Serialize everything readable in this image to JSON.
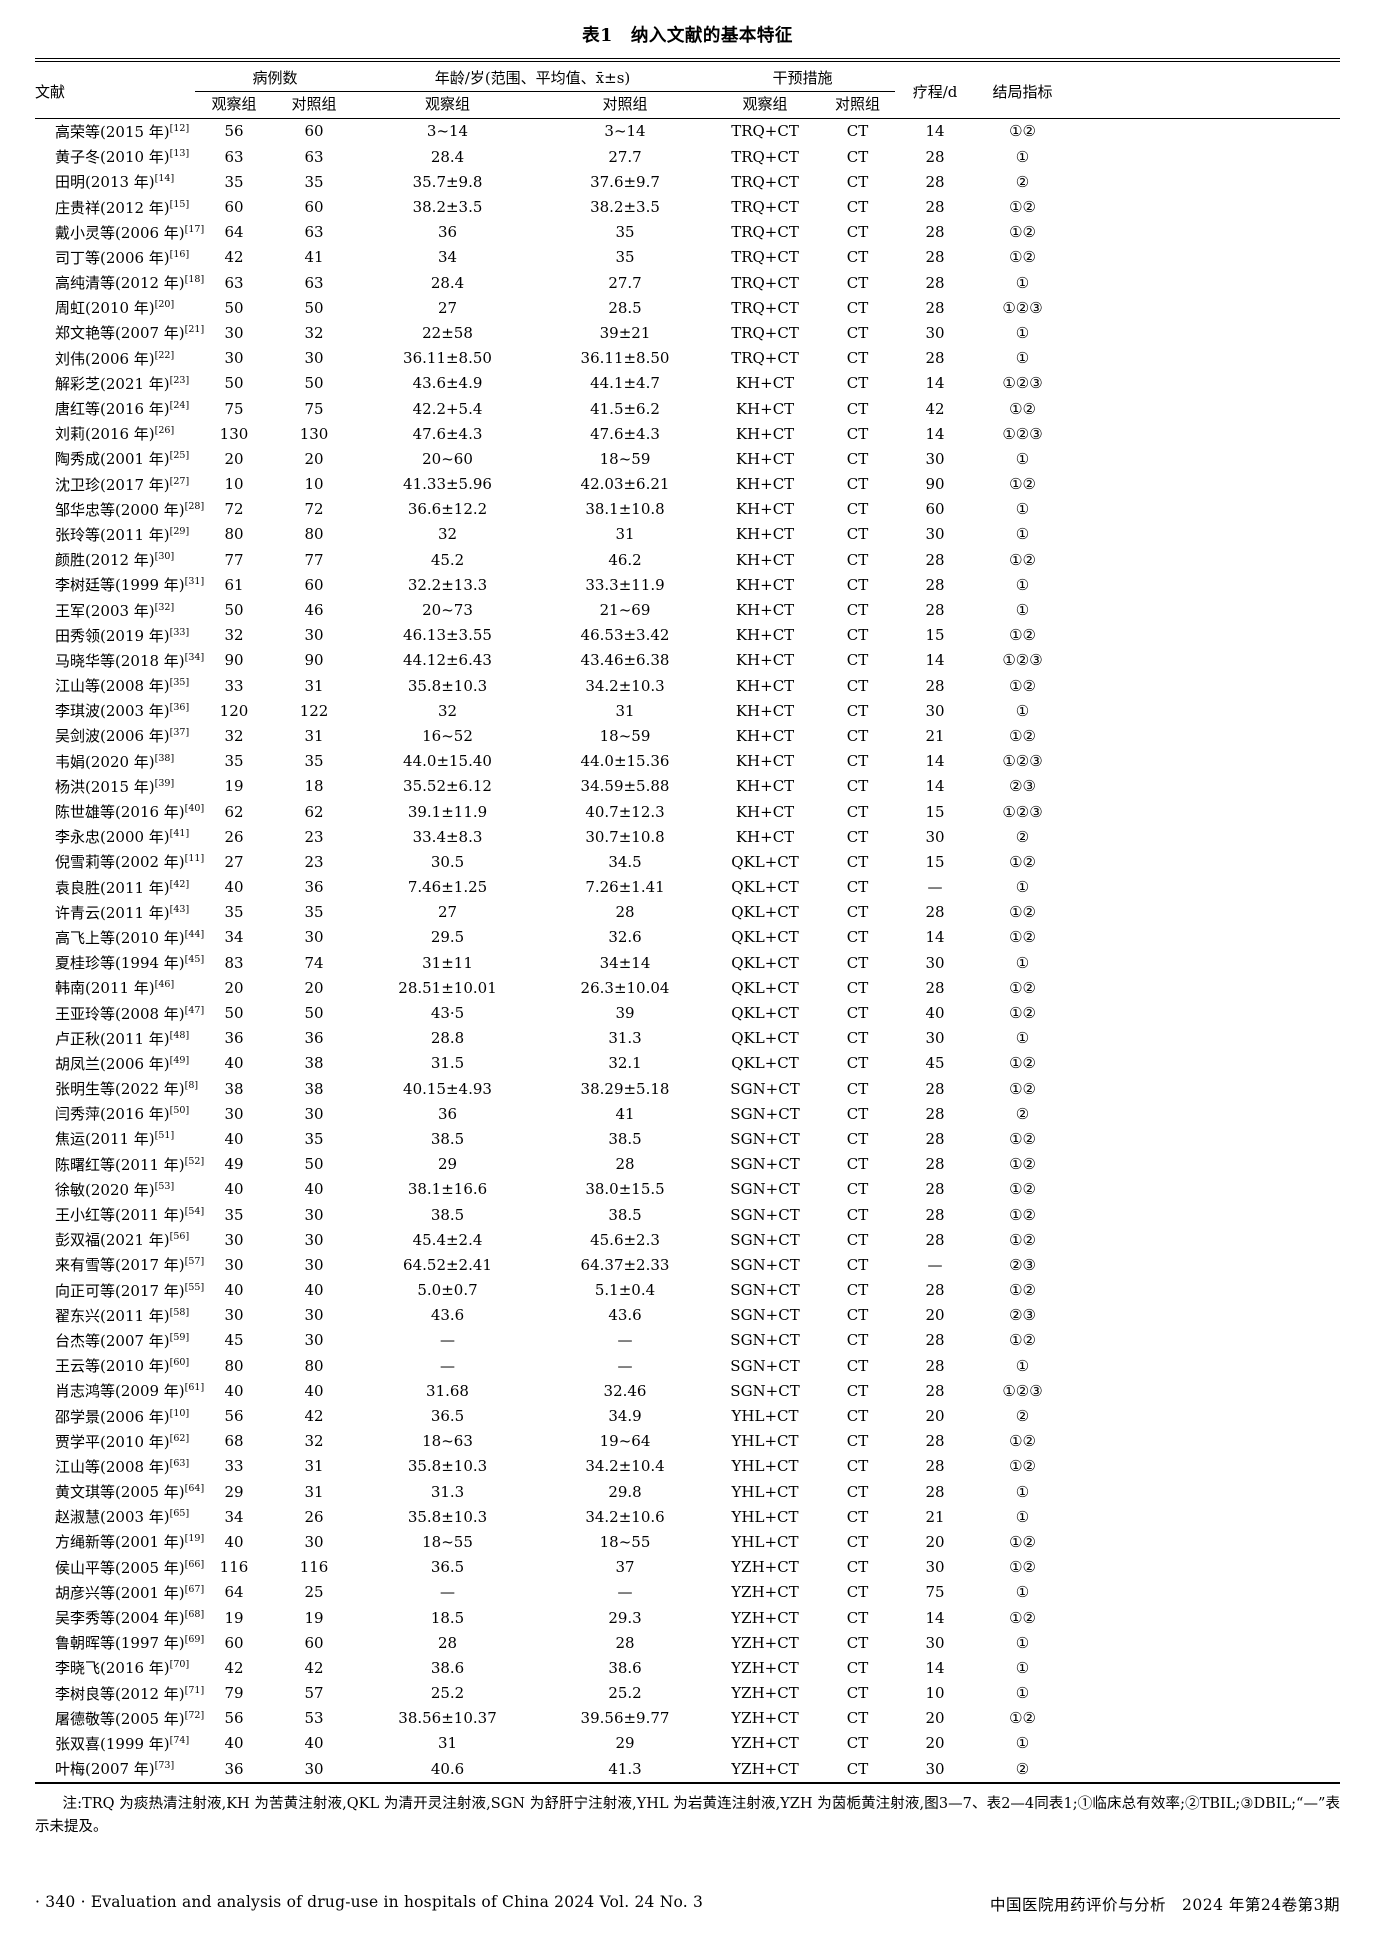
{
  "page": {
    "title": "表1　纳入文献的基本特征",
    "note": "注:TRQ 为痰热清注射液,KH 为苦黄注射液,QKL 为清开灵注射液,SGN 为舒肝宁注射液,YHL 为岩黄连注射液,YZH 为茵栀黄注射液,图3—7、表2—4同表1;①临床总有效率;②TBIL;③DBIL;“—”表示未提及。",
    "footer_left": "· 340 ·  Evaluation and analysis of drug-use in hospitals of China 2024 Vol. 24 No. 3",
    "footer_right": "中国医院用药评价与分析　2024 年第24卷第3期"
  },
  "table": {
    "headers": {
      "literature": "文献",
      "cases": "病例数",
      "age": "年龄/岁(范围、平均值、x̄±s)",
      "intervention": "干预措施",
      "course": "疗程/d",
      "outcome": "结局指标",
      "obs": "观察组",
      "ctl": "对照组",
      "obs2": "观察组",
      "ctl2": "对照组",
      "obs3": "观察组",
      "ctl3": "对照组"
    },
    "rows": [
      [
        "高荣等(2015 年)",
        "[12]",
        "56",
        "60",
        "3~14",
        "3~14",
        "TRQ+CT",
        "CT",
        "14",
        "①②"
      ],
      [
        "黄子冬(2010 年)",
        "[13]",
        "63",
        "63",
        "28.4",
        "27.7",
        "TRQ+CT",
        "CT",
        "28",
        "①"
      ],
      [
        "田明(2013 年)",
        "[14]",
        "35",
        "35",
        "35.7±9.8",
        "37.6±9.7",
        "TRQ+CT",
        "CT",
        "28",
        "②"
      ],
      [
        "庄贵祥(2012 年)",
        "[15]",
        "60",
        "60",
        "38.2±3.5",
        "38.2±3.5",
        "TRQ+CT",
        "CT",
        "28",
        "①②"
      ],
      [
        "戴小灵等(2006 年)",
        "[17]",
        "64",
        "63",
        "36",
        "35",
        "TRQ+CT",
        "CT",
        "28",
        "①②"
      ],
      [
        "司丁等(2006 年)",
        "[16]",
        "42",
        "41",
        "34",
        "35",
        "TRQ+CT",
        "CT",
        "28",
        "①②"
      ],
      [
        "高纯清等(2012 年)",
        "[18]",
        "63",
        "63",
        "28.4",
        "27.7",
        "TRQ+CT",
        "CT",
        "28",
        "①"
      ],
      [
        "周虹(2010 年)",
        "[20]",
        "50",
        "50",
        "27",
        "28.5",
        "TRQ+CT",
        "CT",
        "28",
        "①②③"
      ],
      [
        "郑文艳等(2007 年)",
        "[21]",
        "30",
        "32",
        "22±58",
        "39±21",
        "TRQ+CT",
        "CT",
        "30",
        "①"
      ],
      [
        "刘伟(2006 年)",
        "[22]",
        "30",
        "30",
        "36.11±8.50",
        "36.11±8.50",
        "TRQ+CT",
        "CT",
        "28",
        "①"
      ],
      [
        "解彩芝(2021 年)",
        "[23]",
        "50",
        "50",
        "43.6±4.9",
        "44.1±4.7",
        "KH+CT",
        "CT",
        "14",
        "①②③"
      ],
      [
        "唐红等(2016 年)",
        "[24]",
        "75",
        "75",
        "42.2+5.4",
        "41.5±6.2",
        "KH+CT",
        "CT",
        "42",
        "①②"
      ],
      [
        "刘莉(2016 年)",
        "[26]",
        "130",
        "130",
        "47.6±4.3",
        "47.6±4.3",
        "KH+CT",
        "CT",
        "14",
        "①②③"
      ],
      [
        "陶秀成(2001 年)",
        "[25]",
        "20",
        "20",
        "20~60",
        "18~59",
        "KH+CT",
        "CT",
        "30",
        "①"
      ],
      [
        "沈卫珍(2017 年)",
        "[27]",
        "10",
        "10",
        "41.33±5.96",
        "42.03±6.21",
        "KH+CT",
        "CT",
        "90",
        "①②"
      ],
      [
        "邹华忠等(2000 年)",
        "[28]",
        "72",
        "72",
        "36.6±12.2",
        "38.1±10.8",
        "KH+CT",
        "CT",
        "60",
        "①"
      ],
      [
        "张玲等(2011 年)",
        "[29]",
        "80",
        "80",
        "32",
        "31",
        "KH+CT",
        "CT",
        "30",
        "①"
      ],
      [
        "颜胜(2012 年)",
        "[30]",
        "77",
        "77",
        "45.2",
        "46.2",
        "KH+CT",
        "CT",
        "28",
        "①②"
      ],
      [
        "李树廷等(1999 年)",
        "[31]",
        "61",
        "60",
        "32.2±13.3",
        "33.3±11.9",
        "KH+CT",
        "CT",
        "28",
        "①"
      ],
      [
        "王军(2003 年)",
        "[32]",
        "50",
        "46",
        "20~73",
        "21~69",
        "KH+CT",
        "CT",
        "28",
        "①"
      ],
      [
        "田秀领(2019 年)",
        "[33]",
        "32",
        "30",
        "46.13±3.55",
        "46.53±3.42",
        "KH+CT",
        "CT",
        "15",
        "①②"
      ],
      [
        "马晓华等(2018 年)",
        "[34]",
        "90",
        "90",
        "44.12±6.43",
        "43.46±6.38",
        "KH+CT",
        "CT",
        "14",
        "①②③"
      ],
      [
        "江山等(2008 年)",
        "[35]",
        "33",
        "31",
        "35.8±10.3",
        "34.2±10.3",
        "KH+CT",
        "CT",
        "28",
        "①②"
      ],
      [
        "李琪波(2003 年)",
        "[36]",
        "120",
        "122",
        "32",
        "31",
        "KH+CT",
        "CT",
        "30",
        "①"
      ],
      [
        "吴剑波(2006 年)",
        "[37]",
        "32",
        "31",
        "16~52",
        "18~59",
        "KH+CT",
        "CT",
        "21",
        "①②"
      ],
      [
        "韦娟(2020 年)",
        "[38]",
        "35",
        "35",
        "44.0±15.40",
        "44.0±15.36",
        "KH+CT",
        "CT",
        "14",
        "①②③"
      ],
      [
        "杨洪(2015 年)",
        "[39]",
        "19",
        "18",
        "35.52±6.12",
        "34.59±5.88",
        "KH+CT",
        "CT",
        "14",
        "②③"
      ],
      [
        "陈世雄等(2016 年)",
        "[40]",
        "62",
        "62",
        "39.1±11.9",
        "40.7±12.3",
        "KH+CT",
        "CT",
        "15",
        "①②③"
      ],
      [
        "李永忠(2000 年)",
        "[41]",
        "26",
        "23",
        "33.4±8.3",
        "30.7±10.8",
        "KH+CT",
        "CT",
        "30",
        "②"
      ],
      [
        "倪雪莉等(2002 年)",
        "[11]",
        "27",
        "23",
        "30.5",
        "34.5",
        "QKL+CT",
        "CT",
        "15",
        "①②"
      ],
      [
        "袁良胜(2011 年)",
        "[42]",
        "40",
        "36",
        "7.46±1.25",
        "7.26±1.41",
        "QKL+CT",
        "CT",
        "—",
        "①"
      ],
      [
        "许青云(2011 年)",
        "[43]",
        "35",
        "35",
        "27",
        "28",
        "QKL+CT",
        "CT",
        "28",
        "①②"
      ],
      [
        "高飞上等(2010 年)",
        "[44]",
        "34",
        "30",
        "29.5",
        "32.6",
        "QKL+CT",
        "CT",
        "14",
        "①②"
      ],
      [
        "夏桂珍等(1994 年)",
        "[45]",
        "83",
        "74",
        "31±11",
        "34±14",
        "QKL+CT",
        "CT",
        "30",
        "①"
      ],
      [
        "韩南(2011 年)",
        "[46]",
        "20",
        "20",
        "28.51±10.01",
        "26.3±10.04",
        "QKL+CT",
        "CT",
        "28",
        "①②"
      ],
      [
        "王亚玲等(2008 年)",
        "[47]",
        "50",
        "50",
        "43·5",
        "39",
        "QKL+CT",
        "CT",
        "40",
        "①②"
      ],
      [
        "卢正秋(2011 年)",
        "[48]",
        "36",
        "36",
        "28.8",
        "31.3",
        "QKL+CT",
        "CT",
        "30",
        "①"
      ],
      [
        "胡凤兰(2006 年)",
        "[49]",
        "40",
        "38",
        "31.5",
        "32.1",
        "QKL+CT",
        "CT",
        "45",
        "①②"
      ],
      [
        "张明生等(2022 年)",
        "[8]",
        "38",
        "38",
        "40.15±4.93",
        "38.29±5.18",
        "SGN+CT",
        "CT",
        "28",
        "①②"
      ],
      [
        "闫秀萍(2016 年)",
        "[50]",
        "30",
        "30",
        "36",
        "41",
        "SGN+CT",
        "CT",
        "28",
        "②"
      ],
      [
        "焦运(2011 年)",
        "[51]",
        "40",
        "35",
        "38.5",
        "38.5",
        "SGN+CT",
        "CT",
        "28",
        "①②"
      ],
      [
        "陈曙红等(2011 年)",
        "[52]",
        "49",
        "50",
        "29",
        "28",
        "SGN+CT",
        "CT",
        "28",
        "①②"
      ],
      [
        "徐敏(2020 年)",
        "[53]",
        "40",
        "40",
        "38.1±16.6",
        "38.0±15.5",
        "SGN+CT",
        "CT",
        "28",
        "①②"
      ],
      [
        "王小红等(2011 年)",
        "[54]",
        "35",
        "30",
        "38.5",
        "38.5",
        "SGN+CT",
        "CT",
        "28",
        "①②"
      ],
      [
        "彭双福(2021 年)",
        "[56]",
        "30",
        "30",
        "45.4±2.4",
        "45.6±2.3",
        "SGN+CT",
        "CT",
        "28",
        "①②"
      ],
      [
        "来有雪等(2017 年)",
        "[57]",
        "30",
        "30",
        "64.52±2.41",
        "64.37±2.33",
        "SGN+CT",
        "CT",
        "—",
        "②③"
      ],
      [
        "向正可等(2017 年)",
        "[55]",
        "40",
        "40",
        "5.0±0.7",
        "5.1±0.4",
        "SGN+CT",
        "CT",
        "28",
        "①②"
      ],
      [
        "翟东兴(2011 年)",
        "[58]",
        "30",
        "30",
        "43.6",
        "43.6",
        "SGN+CT",
        "CT",
        "20",
        "②③"
      ],
      [
        "台杰等(2007 年)",
        "[59]",
        "45",
        "30",
        "—",
        "—",
        "SGN+CT",
        "CT",
        "28",
        "①②"
      ],
      [
        "王云等(2010 年)",
        "[60]",
        "80",
        "80",
        "—",
        "—",
        "SGN+CT",
        "CT",
        "28",
        "①"
      ],
      [
        "肖志鸿等(2009 年)",
        "[61]",
        "40",
        "40",
        "31.68",
        "32.46",
        "SGN+CT",
        "CT",
        "28",
        "①②③"
      ],
      [
        "邵学景(2006 年)",
        "[10]",
        "56",
        "42",
        "36.5",
        "34.9",
        "YHL+CT",
        "CT",
        "20",
        "②"
      ],
      [
        "贾学平(2010 年)",
        "[62]",
        "68",
        "32",
        "18~63",
        "19~64",
        "YHL+CT",
        "CT",
        "28",
        "①②"
      ],
      [
        "江山等(2008 年)",
        "[63]",
        "33",
        "31",
        "35.8±10.3",
        "34.2±10.4",
        "YHL+CT",
        "CT",
        "28",
        "①②"
      ],
      [
        "黄文琪等(2005 年)",
        "[64]",
        "29",
        "31",
        "31.3",
        "29.8",
        "YHL+CT",
        "CT",
        "28",
        "①"
      ],
      [
        "赵淑慧(2003 年)",
        "[65]",
        "34",
        "26",
        "35.8±10.3",
        "34.2±10.6",
        "YHL+CT",
        "CT",
        "21",
        "①"
      ],
      [
        "方绳新等(2001 年)",
        "[19]",
        "40",
        "30",
        "18~55",
        "18~55",
        "YHL+CT",
        "CT",
        "20",
        "①②"
      ],
      [
        "侯山平等(2005 年)",
        "[66]",
        "116",
        "116",
        "36.5",
        "37",
        "YZH+CT",
        "CT",
        "30",
        "①②"
      ],
      [
        "胡彦兴等(2001 年)",
        "[67]",
        "64",
        "25",
        "—",
        "—",
        "YZH+CT",
        "CT",
        "75",
        "①"
      ],
      [
        "吴李秀等(2004 年)",
        "[68]",
        "19",
        "19",
        "18.5",
        "29.3",
        "YZH+CT",
        "CT",
        "14",
        "①②"
      ],
      [
        "鲁朝晖等(1997 年)",
        "[69]",
        "60",
        "60",
        "28",
        "28",
        "YZH+CT",
        "CT",
        "30",
        "①"
      ],
      [
        "李晓飞(2016 年)",
        "[70]",
        "42",
        "42",
        "38.6",
        "38.6",
        "YZH+CT",
        "CT",
        "14",
        "①"
      ],
      [
        "李树良等(2012 年)",
        "[71]",
        "79",
        "57",
        "25.2",
        "25.2",
        "YZH+CT",
        "CT",
        "10",
        "①"
      ],
      [
        "屠德敬等(2005 年)",
        "[72]",
        "56",
        "53",
        "38.56±10.37",
        "39.56±9.77",
        "YZH+CT",
        "CT",
        "20",
        "①②"
      ],
      [
        "张双喜(1999 年)",
        "[74]",
        "40",
        "40",
        "31",
        "29",
        "YZH+CT",
        "CT",
        "20",
        "①"
      ],
      [
        "叶梅(2007 年)",
        "[73]",
        "36",
        "30",
        "40.6",
        "41.3",
        "YZH+CT",
        "CT",
        "30",
        "②"
      ]
    ]
  }
}
